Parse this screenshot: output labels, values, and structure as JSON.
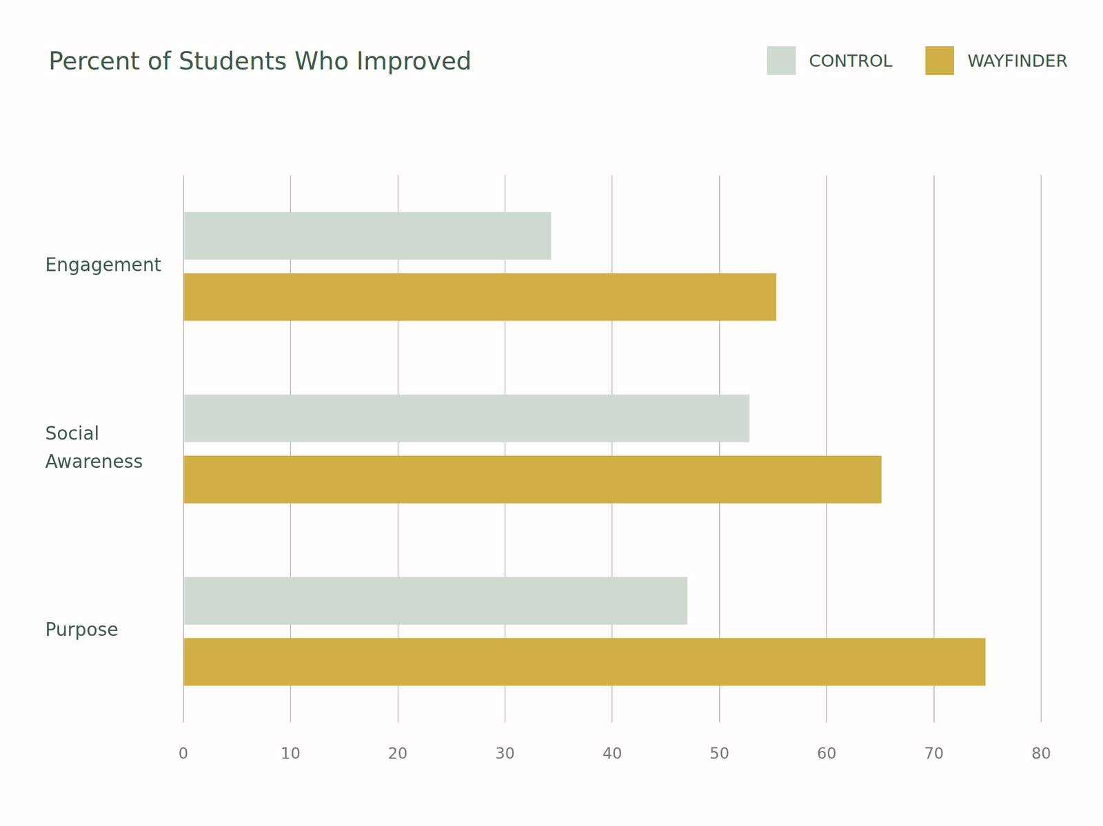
{
  "chart_data": {
    "type": "bar",
    "title": "Percent of Students Who Improved",
    "orientation": "horizontal",
    "categories": [
      "Engagement",
      "Social Awareness",
      "Purpose"
    ],
    "series": [
      {
        "name": "CONTROL",
        "color": "#cfdbd0",
        "values": [
          34.3,
          52.8,
          47.0
        ]
      },
      {
        "name": "WAYFINDER",
        "color": "#cfaf46",
        "values": [
          55.3,
          65.1,
          74.8
        ]
      }
    ],
    "xlim": [
      0,
      80
    ],
    "xticks": [
      0,
      10,
      20,
      30,
      40,
      50,
      60,
      70,
      80
    ],
    "grid": true,
    "legend": "top right"
  }
}
